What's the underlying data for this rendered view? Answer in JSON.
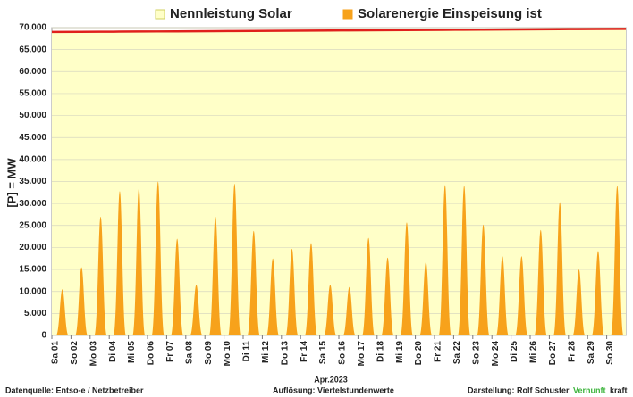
{
  "chart_data": {
    "type": "area",
    "categories": [
      "Sa 01",
      "So 02",
      "Mo 03",
      "Di 04",
      "Mi 05",
      "Do 06",
      "Fr 07",
      "Sa 08",
      "So 09",
      "Mo 10",
      "Di 11",
      "Mi 12",
      "Do 13",
      "Fr 14",
      "Sa 15",
      "So 16",
      "Mo 17",
      "Di 18",
      "Mi 19",
      "Do 20",
      "Fr 21",
      "Sa 22",
      "So 23",
      "Mo 24",
      "Di 25",
      "Mi 26",
      "Do 27",
      "Fr 28",
      "Sa 29",
      "So 30"
    ],
    "series": [
      {
        "name": "Nennleistung Solar",
        "color": "#ffffc8",
        "line_color": "#e0201c",
        "values": [
          69000,
          69025,
          69050,
          69075,
          69100,
          69125,
          69150,
          69175,
          69200,
          69225,
          69250,
          69275,
          69300,
          69325,
          69350,
          69375,
          69400,
          69425,
          69450,
          69475,
          69500,
          69525,
          69550,
          69575,
          69600,
          69625,
          69650,
          69675,
          69700,
          69720
        ]
      },
      {
        "name": "Solarenergie Einspeisung ist",
        "color": "#f7a21b",
        "values": [
          10500,
          15500,
          27000,
          32800,
          33500,
          35000,
          22000,
          11500,
          27000,
          34500,
          23800,
          17500,
          19700,
          21000,
          11500,
          11000,
          22200,
          17700,
          25700,
          16700,
          34200,
          34000,
          25200,
          18000,
          18000,
          24000,
          30300,
          15000,
          19200,
          34000
        ]
      }
    ],
    "ylabel": "[P]  = MW",
    "xlabel": "Apr.2023",
    "ylim": [
      0,
      70000
    ],
    "yticks": [
      0,
      {
        "value": 5000,
        "label": "5.000"
      },
      {
        "value": 10000,
        "label": "10.000"
      },
      {
        "value": 15000,
        "label": "15.000"
      },
      {
        "value": 20000,
        "label": "20.000"
      },
      {
        "value": 25000,
        "label": "25.000"
      },
      {
        "value": 30000,
        "label": "30.000"
      },
      {
        "value": 35000,
        "label": "35.000"
      },
      {
        "value": 40000,
        "label": "40.000"
      },
      {
        "value": 45000,
        "label": "45.000"
      },
      {
        "value": 50000,
        "label": "50.000"
      },
      {
        "value": 55000,
        "label": "55.000"
      },
      {
        "value": 60000,
        "label": "60.000"
      },
      {
        "value": 65000,
        "label": "65.000"
      },
      {
        "value": 70000,
        "label": "70.000"
      }
    ],
    "grid": true,
    "footer": {
      "source": "Datenquelle: Entso-e  / Netzbetreiber",
      "resolution": "Auflösung: Viertelstundenwerte",
      "author": "Darstellung:  Rolf Schuster",
      "brand_green": "Vernunft",
      "brand_black": "kraft"
    }
  }
}
